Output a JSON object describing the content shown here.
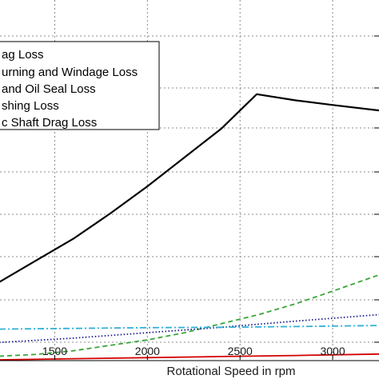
{
  "chart_data": {
    "type": "line",
    "xlabel": "Rotational Speed in rpm",
    "ylabel": "",
    "x_ticks": [
      1500,
      2000,
      2500,
      3000
    ],
    "xlim": [
      1200,
      3250
    ],
    "ylim": [
      0,
      1
    ],
    "grid": true,
    "legend_placement": "top-left",
    "legend_entries": [
      "ag Loss",
      "urning and Windage Loss",
      "and Oil Seal Loss",
      "shing Loss",
      "c Shaft Drag Loss"
    ],
    "series": [
      {
        "color": "#000000",
        "style": "solid",
        "x": [
          1200,
          1400,
          1600,
          1800,
          2000,
          2200,
          2400,
          2590,
          2800,
          3000,
          3250
        ],
        "y": [
          0.215,
          0.275,
          0.335,
          0.405,
          0.48,
          0.56,
          0.64,
          0.735,
          0.718,
          0.705,
          0.69
        ]
      },
      {
        "color": "#3aa63a",
        "style": "dashed",
        "x": [
          1200,
          1400,
          1600,
          1800,
          2000,
          2200,
          2400,
          2600,
          2800,
          3000,
          3250
        ],
        "y": [
          0.01,
          0.015,
          0.025,
          0.04,
          0.055,
          0.075,
          0.1,
          0.125,
          0.155,
          0.19,
          0.235
        ]
      },
      {
        "color": "#1c1c8c",
        "style": "dotted",
        "x": [
          1200,
          1600,
          2000,
          2400,
          2800,
          3250
        ],
        "y": [
          0.048,
          0.06,
          0.075,
          0.09,
          0.107,
          0.125
        ]
      },
      {
        "color": "#33b0d6",
        "style": "dash-dot",
        "x": [
          1200,
          1600,
          2000,
          2400,
          2800,
          3250
        ],
        "y": [
          0.085,
          0.087,
          0.089,
          0.09,
          0.092,
          0.095
        ]
      },
      {
        "color": "#d40000",
        "style": "solid",
        "x": [
          1200,
          1600,
          2000,
          2400,
          2800,
          3250
        ],
        "y": [
          0.0,
          0.003,
          0.006,
          0.009,
          0.012,
          0.016
        ]
      }
    ]
  }
}
